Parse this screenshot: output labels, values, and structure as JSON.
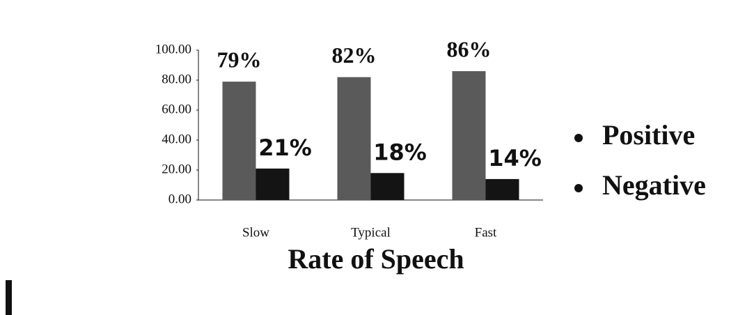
{
  "chart_data": {
    "type": "bar",
    "x_label": "Rate of Speech",
    "categories": [
      "Slow",
      "Typical",
      "Fast"
    ],
    "series": [
      {
        "name": "Positive",
        "color": "#5a5a5a",
        "values": [
          79,
          82,
          86
        ],
        "value_labels": [
          "79%",
          "82%",
          "86%"
        ]
      },
      {
        "name": "Negative",
        "color": "#141414",
        "values": [
          21,
          18,
          14
        ],
        "value_labels": [
          "21%",
          "18%",
          "14%"
        ]
      }
    ],
    "ylim": [
      0,
      100
    ],
    "yticks": [
      {
        "value": 0,
        "label": "0.00"
      },
      {
        "value": 20,
        "label": "20.00"
      },
      {
        "value": 40,
        "label": "40.00"
      },
      {
        "value": 60,
        "label": "60.00"
      },
      {
        "value": 80,
        "label": "80.00"
      },
      {
        "value": 100,
        "label": "100.00"
      }
    ],
    "legend": "right"
  }
}
